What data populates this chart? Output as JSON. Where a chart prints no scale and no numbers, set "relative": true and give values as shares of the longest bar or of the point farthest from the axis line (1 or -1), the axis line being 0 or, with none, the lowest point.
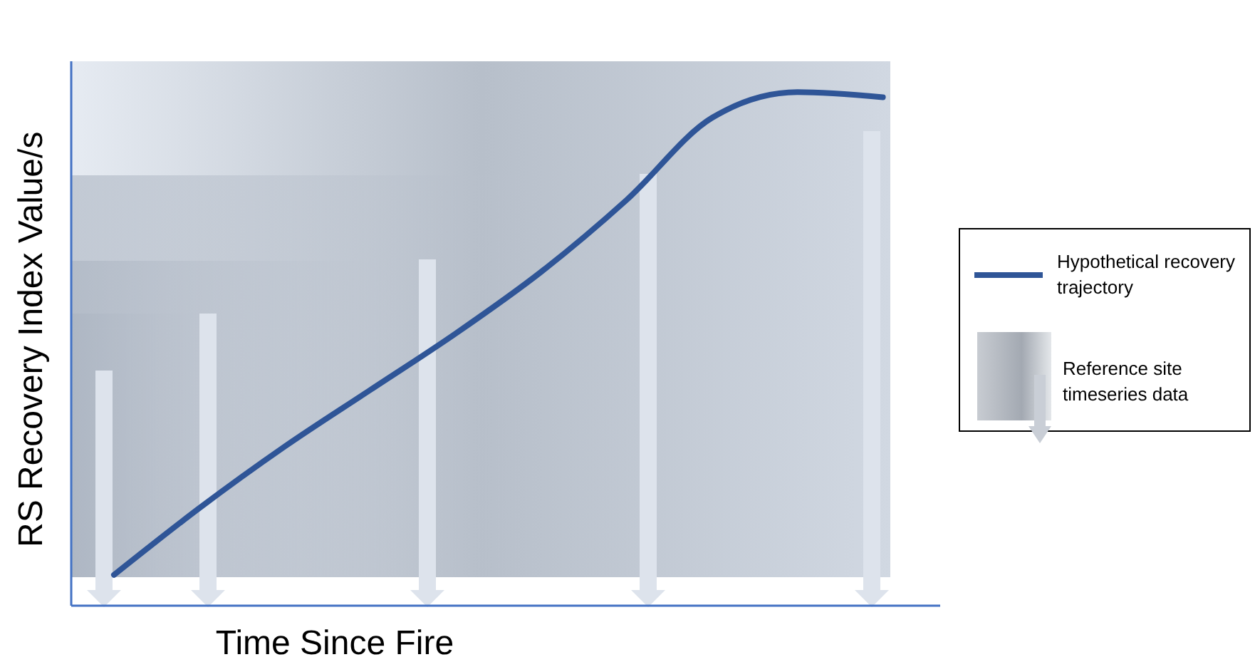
{
  "chart_data": {
    "type": "line",
    "relative": true,
    "xlabel": "Time Since Fire",
    "ylabel": "RS Recovery Index Value/s",
    "categories": [
      null,
      null,
      null,
      null,
      null,
      null,
      null,
      null,
      null,
      null
    ],
    "series": [
      {
        "name": "Hypothetical recovery trajectory",
        "color": "#2f5597",
        "values": [
          0.06,
          0.19,
          0.31,
          0.42,
          0.53,
          0.65,
          0.79,
          0.95,
          1.0,
          0.99
        ]
      }
    ],
    "annotations": [
      "Reference site timeseries data"
    ],
    "legend": "right",
    "marker": "none",
    "line_style": "solid",
    "grid": false
  }
}
